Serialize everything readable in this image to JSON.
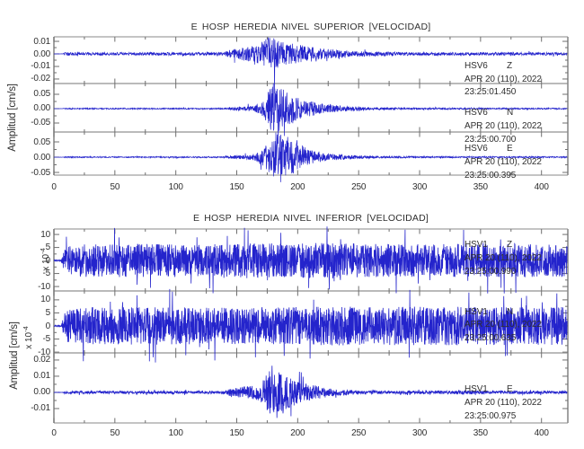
{
  "colors": {
    "trace": "#2424cc",
    "frame": "#b0b0b0",
    "frame_edge": "#8a8a8a",
    "tick": "#6f6f6f",
    "text": "#2f2f2f",
    "background": "#ffffff"
  },
  "chart_data": [
    {
      "type": "line",
      "title": "E HOSP HEREDIA NIVEL SUPERIOR [VELOCIDAD]",
      "ylabel": "Amplitud [cm/s]",
      "xlabel": "",
      "xlim": [
        0,
        421
      ],
      "xticks": [
        0,
        50,
        100,
        150,
        200,
        250,
        300,
        350,
        400
      ],
      "xtick_labels": [
        "0",
        "50",
        "100",
        "150",
        "200",
        "250",
        "300",
        "350",
        "400"
      ],
      "xminor_step": 25,
      "grid": false,
      "traces": [
        {
          "station": "HSV6",
          "component": "Z",
          "date": "APR 20 (110), 2022",
          "time": "23:25:01.450",
          "ylim": [
            -0.0236,
            0.0136
          ],
          "yticks": [
            0.01,
            0,
            -0.01,
            -0.02
          ],
          "ytick_labels": [
            "0.01",
            "0.00",
            "-0.01",
            "-0.02"
          ],
          "samples": 2000,
          "envelope": [
            [
              0,
              0.0001
            ],
            [
              7,
              0.0001
            ],
            [
              9,
              0.0012
            ],
            [
              140,
              0.0013
            ],
            [
              146,
              0.004
            ],
            [
              152,
              0.0045
            ],
            [
              158,
              0.006
            ],
            [
              165,
              0.0065
            ],
            [
              170,
              0.009
            ],
            [
              174,
              0.0125
            ],
            [
              179,
              0.0135
            ],
            [
              184,
              0.011
            ],
            [
              190,
              0.0095
            ],
            [
              198,
              0.008
            ],
            [
              208,
              0.006
            ],
            [
              220,
              0.0045
            ],
            [
              235,
              0.003
            ],
            [
              255,
              0.002
            ],
            [
              285,
              0.0015
            ],
            [
              330,
              0.0013
            ],
            [
              421,
              0.0012
            ]
          ],
          "spikes": [
            [
              181,
              -0.0315
            ],
            [
              176,
              0.0132
            ]
          ]
        },
        {
          "station": "HSV6",
          "component": "N",
          "date": "APR 20 (110), 2022",
          "time": "23:25:00.700",
          "ylim": [
            -0.0813,
            0.0875
          ],
          "yticks": [
            0.05,
            0,
            -0.05
          ],
          "ytick_labels": [
            "0.05",
            "0.00",
            "-0.05"
          ],
          "samples": 2000,
          "envelope": [
            [
              0,
              0.0002
            ],
            [
              7,
              0.0002
            ],
            [
              9,
              0.002
            ],
            [
              140,
              0.0022
            ],
            [
              146,
              0.006
            ],
            [
              155,
              0.008
            ],
            [
              165,
              0.012
            ],
            [
              170,
              0.02
            ],
            [
              174,
              0.05
            ],
            [
              178,
              0.075
            ],
            [
              183,
              0.085
            ],
            [
              188,
              0.07
            ],
            [
              193,
              0.055
            ],
            [
              200,
              0.045
            ],
            [
              207,
              0.03
            ],
            [
              215,
              0.022
            ],
            [
              225,
              0.015
            ],
            [
              235,
              0.01
            ],
            [
              250,
              0.007
            ],
            [
              265,
              0.005
            ],
            [
              285,
              0.004
            ],
            [
              310,
              0.003
            ],
            [
              350,
              0.0025
            ],
            [
              421,
              0.0022
            ]
          ],
          "spikes": [
            [
              184,
              -0.122
            ],
            [
              180,
              0.088
            ],
            [
              189,
              -0.095
            ]
          ]
        },
        {
          "station": "HSV6",
          "component": "E",
          "date": "APR 20 (110), 2022",
          "time": "23:25:00.395",
          "ylim": [
            -0.0588,
            0.0824
          ],
          "yticks": [
            0.05,
            0,
            -0.05
          ],
          "ytick_labels": [
            "0.05",
            "0.00",
            "-0.05"
          ],
          "samples": 2000,
          "envelope": [
            [
              0,
              0.0002
            ],
            [
              7,
              0.0002
            ],
            [
              9,
              0.002
            ],
            [
              140,
              0.0022
            ],
            [
              146,
              0.005
            ],
            [
              155,
              0.007
            ],
            [
              165,
              0.011
            ],
            [
              172,
              0.03
            ],
            [
              177,
              0.06
            ],
            [
              182,
              0.075
            ],
            [
              188,
              0.078
            ],
            [
              194,
              0.06
            ],
            [
              200,
              0.045
            ],
            [
              208,
              0.028
            ],
            [
              216,
              0.018
            ],
            [
              226,
              0.012
            ],
            [
              238,
              0.008
            ],
            [
              252,
              0.005
            ],
            [
              270,
              0.0035
            ],
            [
              300,
              0.0028
            ],
            [
              421,
              0.0022
            ]
          ],
          "spikes": [
            [
              186,
              -0.082
            ],
            [
              182,
              0.081
            ]
          ]
        }
      ]
    },
    {
      "type": "line",
      "title": "E HOSP HEREDIA NIVEL INFERIOR [VELOCIDAD]",
      "ylabel": "Amplitud [cm/s]",
      "xlabel": "",
      "scale_label": {
        "prefix": "x 10",
        "exponent": "-4"
      },
      "xlim": [
        0,
        421
      ],
      "xticks": [
        0,
        50,
        100,
        150,
        200,
        250,
        300,
        350,
        400
      ],
      "xtick_labels": [
        "0",
        "50",
        "100",
        "150",
        "200",
        "250",
        "300",
        "350",
        "400"
      ],
      "xminor_step": 25,
      "grid": false,
      "traces": [
        {
          "station": "HSV1",
          "component": "Z",
          "date": "APR 20 (110), 2022",
          "time": "23:25:00.990",
          "ylim": [
            -11.7,
            12.1
          ],
          "yticks": [
            10,
            5,
            0,
            -5,
            -10
          ],
          "ytick_labels": [
            "10",
            "5",
            "0",
            "-5",
            "-10"
          ],
          "samples": 2300,
          "envelope": [
            [
              0,
              0.25
            ],
            [
              6,
              0.25
            ],
            [
              9,
              5.5
            ],
            [
              30,
              6.5
            ],
            [
              120,
              6.2
            ],
            [
              200,
              6.8
            ],
            [
              300,
              6.3
            ],
            [
              421,
              6.5
            ]
          ],
          "spikes": []
        },
        {
          "station": "HSV1",
          "component": "N",
          "date": "APR 20 (110), 2022",
          "time": "23:25:00.635",
          "ylim": [
            -10.3,
            13.4
          ],
          "yticks": [
            10,
            5,
            0,
            -5,
            -10
          ],
          "ytick_labels": [
            "10",
            "5",
            "0",
            "-5",
            "-10"
          ],
          "samples": 2300,
          "envelope": [
            [
              0,
              0.3
            ],
            [
              6,
              0.3
            ],
            [
              9,
              6
            ],
            [
              30,
              7.3
            ],
            [
              150,
              7
            ],
            [
              250,
              7.5
            ],
            [
              421,
              7.2
            ]
          ],
          "spikes": []
        },
        {
          "station": "HSV1",
          "component": "E",
          "date": "APR 20 (110), 2022",
          "time": "23:25:00.975",
          "ylim": [
            -0.0189,
            0.0244
          ],
          "yticks": [
            0.02,
            0.01,
            0,
            -0.01
          ],
          "ytick_labels": [
            "0.02",
            "0.01",
            "0.00",
            "-0.01"
          ],
          "samples": 2000,
          "envelope": [
            [
              0,
              0.0001
            ],
            [
              7,
              0.0001
            ],
            [
              9,
              0.0008
            ],
            [
              140,
              0.0009
            ],
            [
              146,
              0.003
            ],
            [
              154,
              0.0035
            ],
            [
              162,
              0.004
            ],
            [
              168,
              0.005
            ],
            [
              172,
              0.009
            ],
            [
              176,
              0.013
            ],
            [
              181,
              0.014
            ],
            [
              186,
              0.012
            ],
            [
              192,
              0.01
            ],
            [
              200,
              0.007
            ],
            [
              210,
              0.005
            ],
            [
              220,
              0.0035
            ],
            [
              232,
              0.002
            ],
            [
              250,
              0.0012
            ],
            [
              280,
              0.001
            ],
            [
              421,
              0.0009
            ]
          ],
          "spikes": [
            [
              183,
              -0.0158
            ],
            [
              179,
              0.0165
            ],
            [
              188,
              -0.013
            ]
          ]
        }
      ]
    }
  ]
}
